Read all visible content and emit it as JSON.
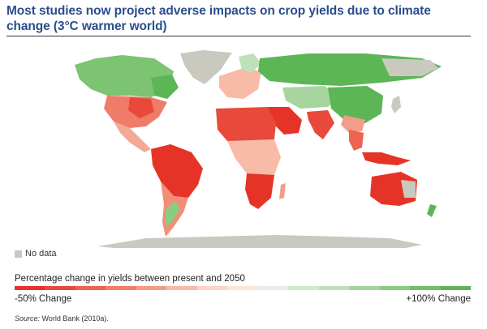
{
  "title": "Most studies now project adverse impacts on crop yields due to climate change (3°C warmer world)",
  "legend": {
    "no_data_label": "No data",
    "no_data_color": "#c9c9bf",
    "scale_title": "Percentage change in yields between present and 2050",
    "min_label": "-50% Change",
    "max_label": "+100% Change",
    "scale_colors": [
      "#e53427",
      "#e8493a",
      "#ec6350",
      "#f07e6a",
      "#f39c88",
      "#f7bba8",
      "#fad4c6",
      "#fbe6dc",
      "#e5f0e2",
      "#d3e9cf",
      "#bfe0b9",
      "#a6d59f",
      "#8ccb84",
      "#72c06b",
      "#5cb655"
    ]
  },
  "source": {
    "prefix": "Source:",
    "text": "World Bank (2010a)."
  }
}
